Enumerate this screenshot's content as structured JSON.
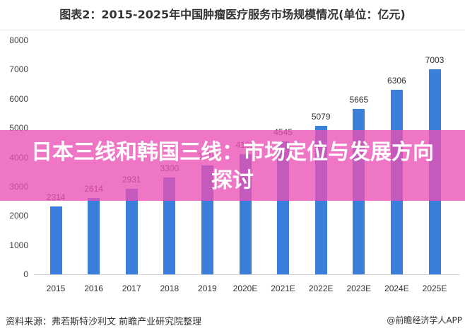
{
  "title": "图表2：2015-2025年中国肿瘤医疗服务市场规模情况(单位：亿元)",
  "banner": "日本三线和韩国三线：市场定位与发展方向探讨",
  "footer": {
    "source": "资料来源：弗若斯特沙利文 前瞻产业研究院整理",
    "brand": "@前瞻经济学人APP"
  },
  "colors": {
    "bar": "#3a7fdc",
    "banner": "#eb50b4"
  },
  "y_ticks": [
    "0",
    "1000",
    "2000",
    "3000",
    "4000",
    "5000",
    "6000",
    "7000",
    "8000"
  ],
  "chart_data": {
    "type": "bar",
    "title": "2015-2025年中国肿瘤医疗服务市场规模情况(单位：亿元)",
    "xlabel": "",
    "ylabel": "亿元",
    "ylim": [
      0,
      8000
    ],
    "grid": false,
    "legend": "none",
    "categories": [
      "2015",
      "2016",
      "2017",
      "2018",
      "2019",
      "2020E",
      "2021E",
      "2022E",
      "2023E",
      "2024E",
      "2025E"
    ],
    "values": [
      2314,
      2614,
      2931,
      3300,
      3710,
      4102,
      4545,
      5079,
      5665,
      6306,
      7003
    ],
    "labels": [
      "2314",
      "2614",
      "2931",
      "3300",
      "3710",
      "4102",
      "4545",
      "5079",
      "5665",
      "6306",
      "7003"
    ]
  }
}
